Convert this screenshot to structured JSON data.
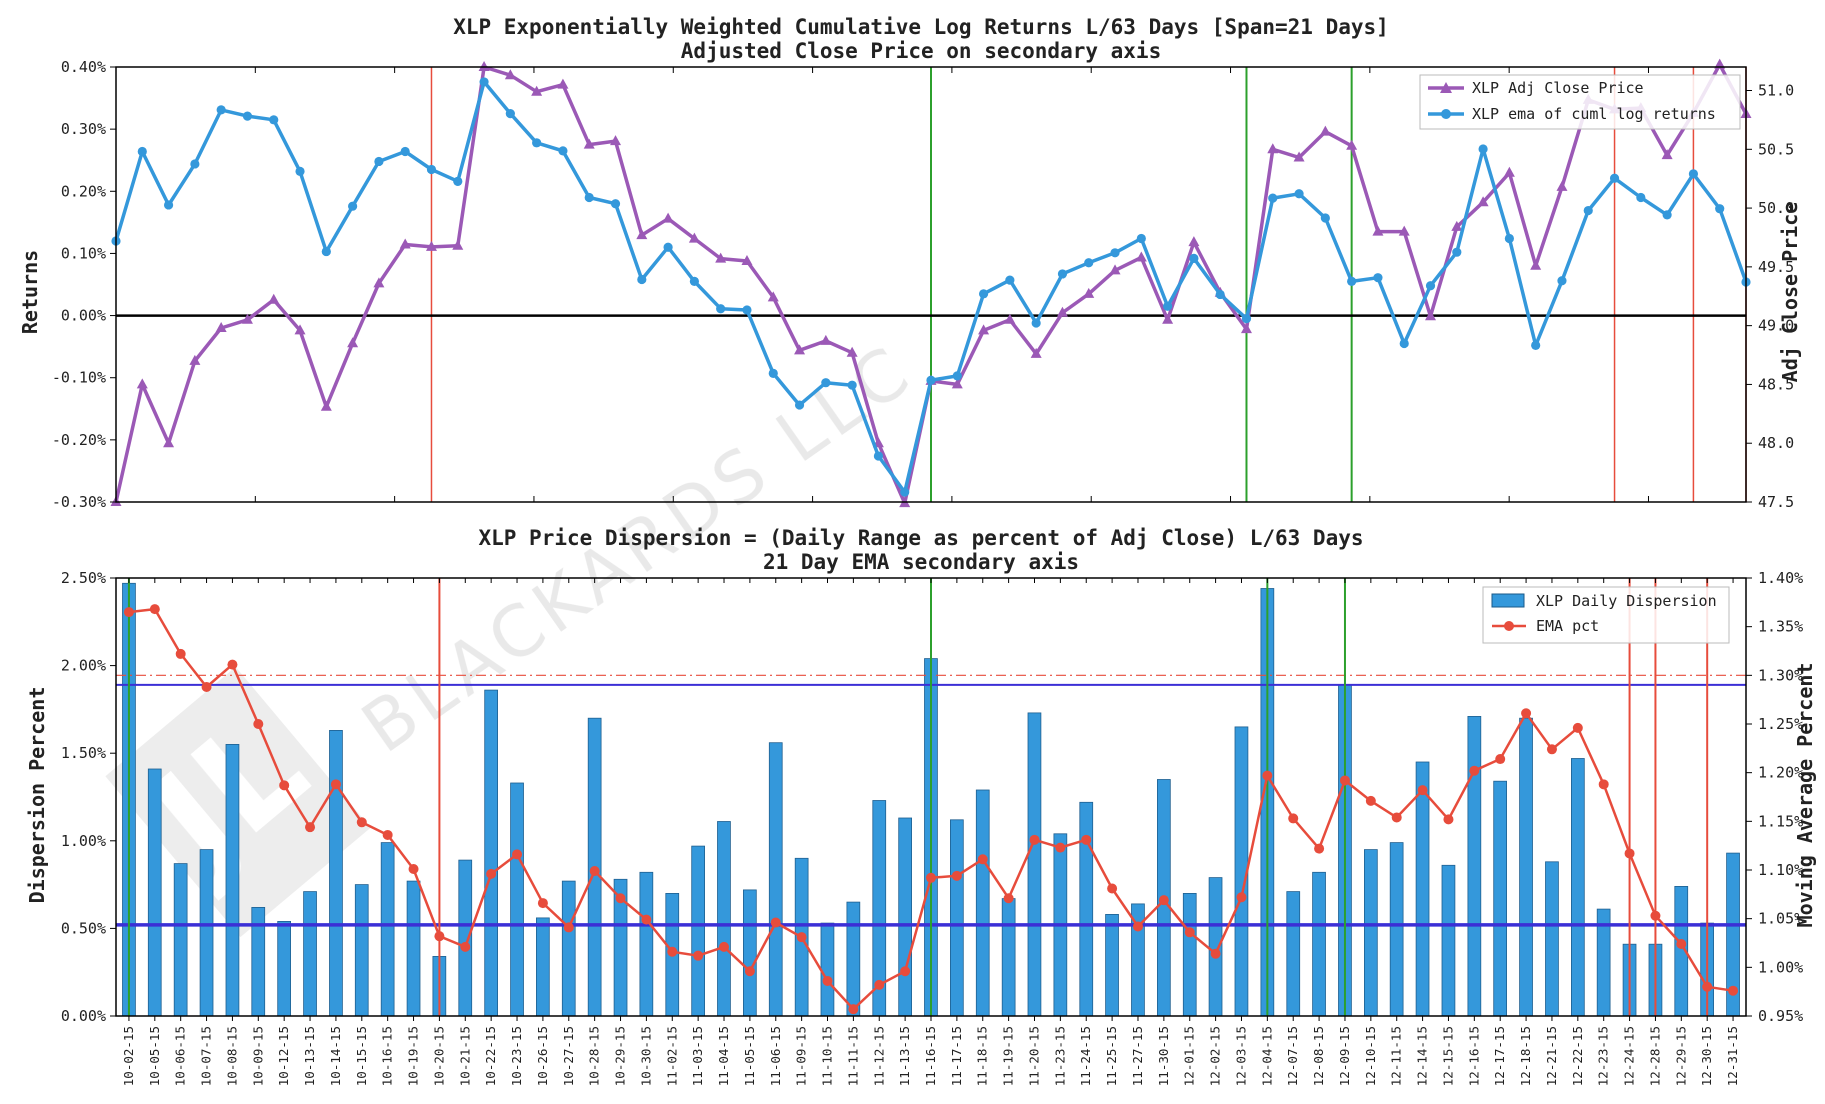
{
  "watermark": {
    "text": "BLACKARDS LLC"
  },
  "chart_data": [
    {
      "type": "line",
      "title": "XLP Exponentially Weighted Cumulative Log Returns L/63 Days [Span=21 Days]",
      "subtitle": "Adjusted Close Price on secondary axis",
      "ylabel": "Returns",
      "ylabel2": "Adj Close Price",
      "ylim": [
        -0.3,
        0.4
      ],
      "ylim2": [
        47.5,
        51.2
      ],
      "yticks": [
        "-0.30%",
        "-0.20%",
        "-0.10%",
        "0.00%",
        "0.10%",
        "0.20%",
        "0.30%",
        "0.40%"
      ],
      "yticks2": [
        "47.5",
        "48.0",
        "48.5",
        "49.0",
        "49.5",
        "50.0",
        "50.5",
        "51.0"
      ],
      "grid": false,
      "legend_position": "top-right",
      "zero_line": 0.0,
      "series": [
        {
          "name": "XLP Adj Close Price",
          "axis": "secondary",
          "color": "#9b59b6",
          "marker": "triangle",
          "values": [
            47.5,
            48.5,
            48.0,
            48.7,
            48.98,
            49.05,
            49.22,
            48.96,
            48.31,
            48.85,
            49.36,
            49.69,
            49.67,
            49.68,
            51.2,
            51.13,
            50.99,
            51.05,
            50.54,
            50.57,
            49.77,
            49.91,
            49.74,
            49.57,
            49.55,
            49.24,
            48.79,
            48.87,
            48.77,
            48.0,
            47.49,
            48.53,
            48.5,
            48.96,
            49.05,
            48.76,
            49.11,
            49.27,
            49.47,
            49.58,
            49.05,
            49.71,
            49.28,
            48.97,
            50.5,
            50.43,
            50.65,
            50.53,
            49.8,
            49.8,
            49.08,
            49.84,
            50.05,
            50.3,
            49.51,
            50.18,
            50.92,
            50.84,
            50.85,
            50.45,
            50.81,
            51.22,
            50.8
          ]
        },
        {
          "name": "XLP ema of cuml log returns",
          "axis": "primary",
          "color": "#3498db",
          "marker": "circle",
          "values": [
            0.12,
            0.264,
            0.178,
            0.244,
            0.331,
            0.321,
            0.315,
            0.232,
            0.103,
            0.176,
            0.248,
            0.264,
            0.235,
            0.216,
            0.376,
            0.325,
            0.278,
            0.265,
            0.19,
            0.18,
            0.058,
            0.11,
            0.055,
            0.011,
            0.009,
            -0.093,
            -0.144,
            -0.108,
            -0.112,
            -0.226,
            -0.284,
            -0.104,
            -0.097,
            0.035,
            0.057,
            -0.012,
            0.067,
            0.085,
            0.101,
            0.124,
            0.015,
            0.092,
            0.034,
            -0.005,
            0.189,
            0.196,
            0.157,
            0.055,
            0.061,
            -0.045,
            0.048,
            0.102,
            0.268,
            0.124,
            -0.048,
            0.056,
            0.169,
            0.221,
            0.19,
            0.162,
            0.228,
            0.172,
            0.054
          ]
        }
      ],
      "vlines": [
        {
          "color": "#e74c3c",
          "at_index": 12
        },
        {
          "color": "#2ca02c",
          "at_index": 31
        },
        {
          "color": "#2ca02c",
          "at_index": 43
        },
        {
          "color": "#2ca02c",
          "at_index": 47
        },
        {
          "color": "#e74c3c",
          "at_index": 57
        },
        {
          "color": "#e74c3c",
          "at_index": 60
        },
        {
          "color": "#e74c3c",
          "at_index": 62
        }
      ]
    },
    {
      "type": "bar",
      "title": "XLP Price Dispersion = (Daily Range as percent of Adj Close) L/63 Days",
      "subtitle": "21 Day EMA secondary axis",
      "ylabel": "Dispersion Percent",
      "ylabel2": "Moving Average Percent",
      "ylim": [
        0.0,
        2.5
      ],
      "ylim2": [
        0.95,
        1.4
      ],
      "yticks": [
        "0.00%",
        "0.50%",
        "1.00%",
        "1.50%",
        "2.00%",
        "2.50%"
      ],
      "yticks2": [
        "0.95%",
        "1.00%",
        "1.05%",
        "1.10%",
        "1.15%",
        "1.20%",
        "1.25%",
        "1.30%",
        "1.35%",
        "1.40%"
      ],
      "grid": false,
      "legend_position": "top-right",
      "categories": [
        "10-02-15",
        "10-05-15",
        "10-06-15",
        "10-07-15",
        "10-08-15",
        "10-09-15",
        "10-12-15",
        "10-13-15",
        "10-14-15",
        "10-15-15",
        "10-16-15",
        "10-19-15",
        "10-20-15",
        "10-21-15",
        "10-22-15",
        "10-23-15",
        "10-26-15",
        "10-27-15",
        "10-28-15",
        "10-29-15",
        "10-30-15",
        "11-02-15",
        "11-03-15",
        "11-04-15",
        "11-05-15",
        "11-06-15",
        "11-09-15",
        "11-10-15",
        "11-11-15",
        "11-12-15",
        "11-13-15",
        "11-16-15",
        "11-17-15",
        "11-18-15",
        "11-19-15",
        "11-20-15",
        "11-23-15",
        "11-24-15",
        "11-25-15",
        "11-27-15",
        "11-30-15",
        "12-01-15",
        "12-02-15",
        "12-03-15",
        "12-04-15",
        "12-07-15",
        "12-08-15",
        "12-09-15",
        "12-10-15",
        "12-11-15",
        "12-14-15",
        "12-15-15",
        "12-16-15",
        "12-17-15",
        "12-18-15",
        "12-21-15",
        "12-22-15",
        "12-23-15",
        "12-24-15",
        "12-28-15",
        "12-29-15",
        "12-30-15",
        "12-31-15"
      ],
      "series": [
        {
          "name": "XLP Daily Dispersion",
          "axis": "primary",
          "color": "#3498db",
          "values": [
            2.47,
            1.41,
            0.87,
            0.95,
            1.55,
            0.62,
            0.54,
            0.71,
            1.63,
            0.75,
            0.99,
            0.77,
            0.34,
            0.89,
            1.86,
            1.33,
            0.56,
            0.77,
            1.7,
            0.78,
            0.82,
            0.7,
            0.97,
            1.11,
            0.72,
            1.56,
            0.9,
            0.53,
            0.65,
            1.23,
            1.13,
            2.04,
            1.12,
            1.29,
            0.67,
            1.73,
            1.04,
            1.22,
            0.58,
            0.64,
            1.35,
            0.7,
            0.79,
            1.65,
            2.44,
            0.71,
            0.82,
            1.89,
            0.95,
            0.99,
            1.45,
            0.86,
            1.71,
            1.34,
            1.7,
            0.88,
            1.47,
            0.61,
            0.41,
            0.41,
            0.74,
            0.53,
            0.93
          ]
        },
        {
          "name": "EMA pct",
          "axis": "secondary",
          "color": "#e74c3c",
          "marker": "circle",
          "values": [
            1.365,
            1.368,
            1.322,
            1.288,
            1.311,
            1.25,
            1.187,
            1.144,
            1.188,
            1.149,
            1.136,
            1.101,
            1.032,
            1.021,
            1.096,
            1.116,
            1.066,
            1.041,
            1.099,
            1.071,
            1.049,
            1.016,
            1.012,
            1.021,
            0.996,
            1.046,
            1.031,
            0.986,
            0.957,
            0.982,
            0.996,
            1.092,
            1.094,
            1.111,
            1.071,
            1.131,
            1.123,
            1.131,
            1.081,
            1.042,
            1.069,
            1.036,
            1.014,
            1.072,
            1.197,
            1.153,
            1.122,
            1.192,
            1.171,
            1.154,
            1.182,
            1.152,
            1.202,
            1.214,
            1.261,
            1.224,
            1.246,
            1.188,
            1.117,
            1.053,
            1.024,
            0.98,
            0.976
          ]
        }
      ],
      "hlines": [
        {
          "axis": "primary",
          "value": 1.89,
          "color": "#3b2fd6",
          "style": "solid"
        },
        {
          "axis": "primary",
          "value": 0.52,
          "color": "#3b2fd6",
          "style": "solid-thick"
        },
        {
          "axis": "secondary",
          "value": 1.3,
          "color": "#e74c3c",
          "style": "dash-dot"
        }
      ],
      "vlines": [
        {
          "color": "#2ca02c",
          "at_index": 0
        },
        {
          "color": "#e74c3c",
          "at_index": 12
        },
        {
          "color": "#2ca02c",
          "at_index": 31
        },
        {
          "color": "#2ca02c",
          "at_index": 44
        },
        {
          "color": "#2ca02c",
          "at_index": 47
        },
        {
          "color": "#e74c3c",
          "at_index": 58
        },
        {
          "color": "#e74c3c",
          "at_index": 59
        },
        {
          "color": "#e74c3c",
          "at_index": 61
        }
      ]
    }
  ]
}
